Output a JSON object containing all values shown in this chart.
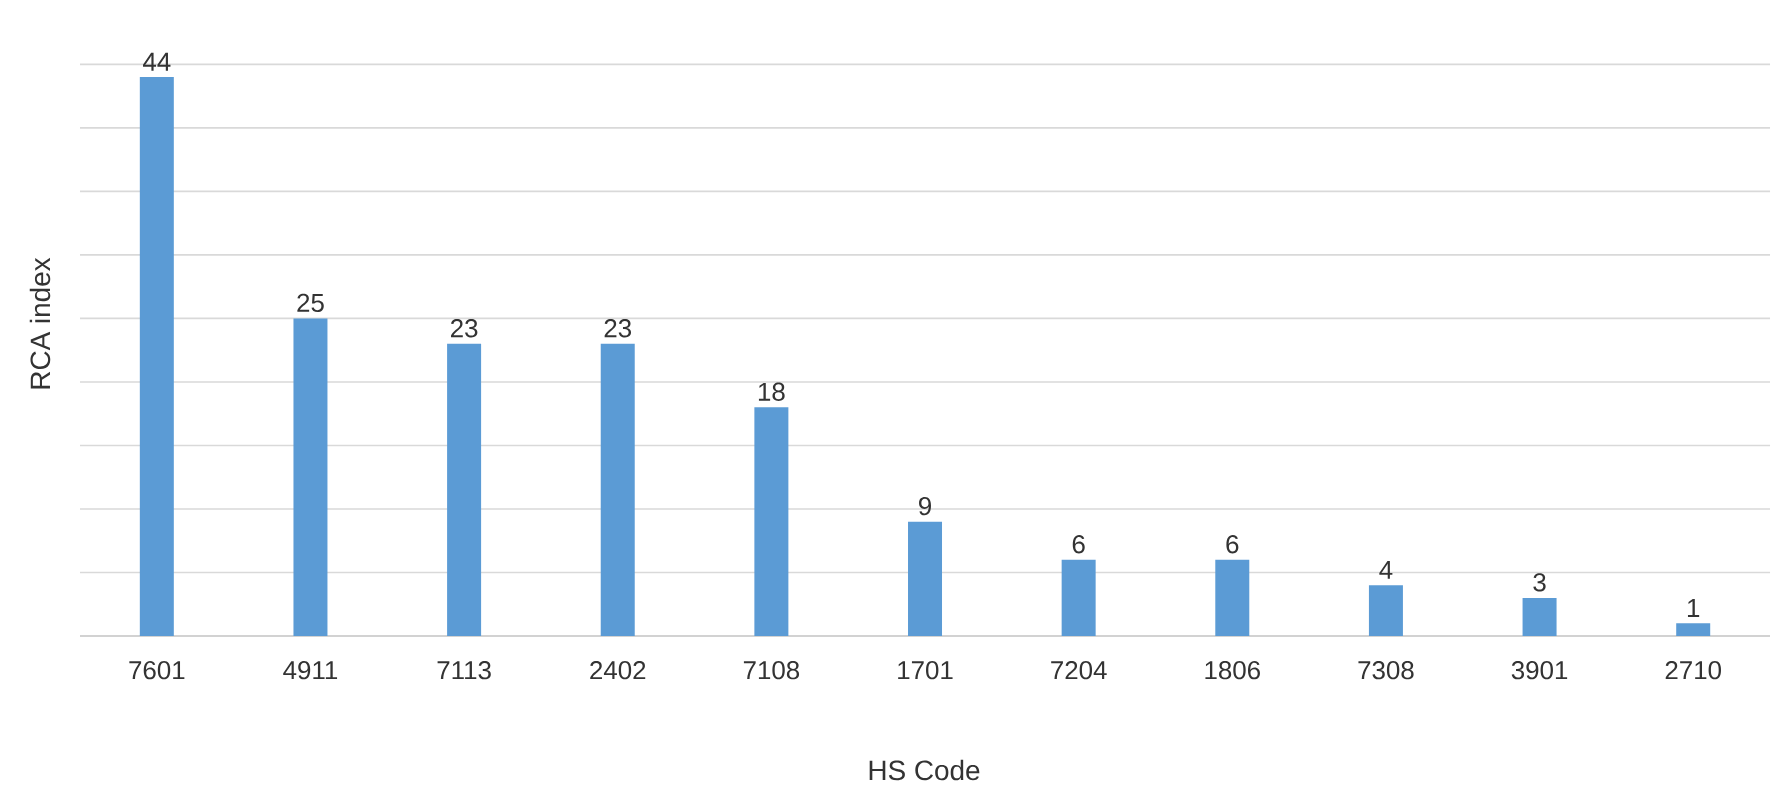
{
  "chart_data": {
    "type": "bar",
    "xlabel": "HS Code",
    "ylabel": "RCA index",
    "categories": [
      "7601",
      "4911",
      "7113",
      "2402",
      "7108",
      "1701",
      "7204",
      "1806",
      "7308",
      "3901",
      "2710"
    ],
    "values": [
      44,
      25,
      23,
      23,
      18,
      9,
      6,
      6,
      4,
      3,
      1
    ],
    "color": "#5b9bd5",
    "data_labels": true,
    "grid": "y",
    "tick_labels": "x"
  }
}
